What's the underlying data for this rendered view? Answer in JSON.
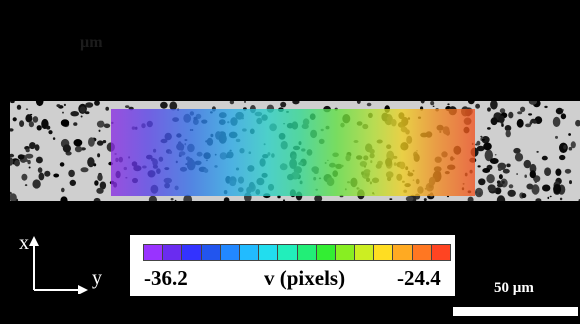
{
  "image": {
    "faint_label": "µm"
  },
  "axes": {
    "x_label": "x",
    "y_label": "y"
  },
  "colorbar": {
    "min_label": "-36.2",
    "title": "v (pixels)",
    "max_label": "-24.4",
    "colors": [
      "#9933ff",
      "#6a2cf0",
      "#3333ff",
      "#2255ee",
      "#2288ff",
      "#22bbff",
      "#22ddee",
      "#22eebb",
      "#22ee77",
      "#33ee33",
      "#88ee22",
      "#ccee22",
      "#ffdd22",
      "#ffaa22",
      "#ff7722",
      "#ff4422"
    ]
  },
  "scale_bar": {
    "label": "50 µm"
  },
  "colors": {
    "background": "#000000",
    "strip": "#cfcfcf",
    "annotation": "#ffffff"
  }
}
